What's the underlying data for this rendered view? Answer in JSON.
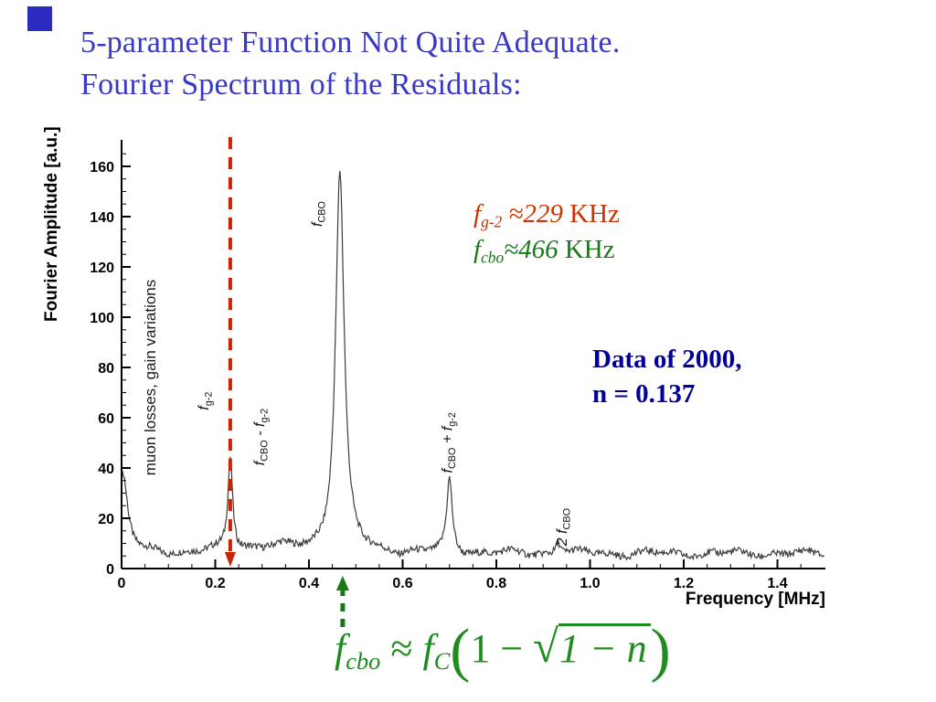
{
  "slide": {
    "title": {
      "line1": "5-parameter Function Not Quite Adequate.",
      "line2": "Fourier Spectrum of the Residuals:",
      "color": "#3939c8"
    },
    "corner_color": "#2b2bbf"
  },
  "annotations": {
    "fg2": {
      "color": "#cc3300",
      "parts": [
        {
          "t": "f",
          "style": "it"
        },
        {
          "t": "g-2",
          "style": "sub"
        },
        {
          "t": " ≈229",
          "style": "it"
        },
        {
          "t": " KHz",
          "style": "norm"
        }
      ]
    },
    "fcbo": {
      "color": "#177a17",
      "parts": [
        {
          "t": "f",
          "style": "it"
        },
        {
          "t": "cbo",
          "style": "sub"
        },
        {
          "t": "≈466",
          "style": "it"
        },
        {
          "t": " KHz",
          "style": "norm"
        }
      ]
    },
    "data_note": {
      "color": "#000099",
      "line1": "Data of 2000,",
      "line2": "n = 0.137"
    }
  },
  "formula": {
    "color": "#1e8c1e",
    "parts": [
      {
        "t": "f",
        "style": "it"
      },
      {
        "t": "cbo",
        "style": "sub"
      },
      {
        "t": " ≈ ",
        "style": "norm"
      },
      {
        "t": "f",
        "style": "it"
      },
      {
        "t": "C",
        "style": "sub"
      },
      {
        "t": "(",
        "style": "paren"
      },
      {
        "t": "1 − ",
        "style": "norm"
      },
      {
        "t": "√",
        "style": "rad"
      },
      {
        "t": "1 − n",
        "style": "radicand"
      },
      {
        "t": ")",
        "style": "paren"
      }
    ]
  },
  "chart_data": {
    "type": "line",
    "title": "",
    "xlabel": "Frequency [MHz]",
    "ylabel": "Fourier Amplitude [a.u.]",
    "xlim": [
      0,
      1.5
    ],
    "ylim": [
      0,
      170
    ],
    "x_ticks": [
      "0",
      "0.2",
      "0.4",
      "0.6",
      "0.8",
      "1.0",
      "1.2",
      "1.4"
    ],
    "x_tick_vals": [
      0,
      0.2,
      0.4,
      0.6,
      0.8,
      1.0,
      1.2,
      1.4
    ],
    "y_ticks": [
      0,
      20,
      40,
      60,
      80,
      100,
      120,
      140,
      160
    ],
    "grid": false,
    "curve_color": "#3c3c3c",
    "baseline": 6,
    "noise_amp": 1.4,
    "peaks": [
      {
        "x": 0.003,
        "amp": 31,
        "width": 0.012,
        "name": "low-frequency spike"
      },
      {
        "x": 0.232,
        "amp": 37,
        "width": 0.006,
        "name": "f_g-2 / f_CBO - f_g-2 peak (~229 KHz)"
      },
      {
        "x": 0.466,
        "amp": 152,
        "width": 0.011,
        "name": "f_CBO peak (~466 KHz)"
      },
      {
        "x": 0.7,
        "amp": 29,
        "width": 0.007,
        "name": "f_CBO + f_g-2 peak"
      },
      {
        "x": 0.932,
        "amp": 5,
        "width": 0.007,
        "name": "2 f_CBO peak"
      }
    ],
    "peak_labels": [
      {
        "x_mhz": 0.185,
        "y_amp": 63,
        "parts": [
          {
            "t": "f",
            "style": "it"
          },
          {
            "t": "g-2",
            "style": "sub"
          }
        ]
      },
      {
        "x_mhz": 0.304,
        "y_amp": 41,
        "parts": [
          {
            "t": "f",
            "style": "it"
          },
          {
            "t": "CBO",
            "style": "sub"
          },
          {
            "t": " - f",
            "style": "it"
          },
          {
            "t": "g-2",
            "style": "sub"
          }
        ]
      },
      {
        "x_mhz": 0.427,
        "y_amp": 136,
        "parts": [
          {
            "t": "f",
            "style": "it"
          },
          {
            "t": "CBO",
            "style": "sub"
          }
        ]
      },
      {
        "x_mhz": 0.705,
        "y_amp": 38,
        "parts": [
          {
            "t": "f",
            "style": "it"
          },
          {
            "t": "CBO",
            "style": "sub"
          },
          {
            "t": " + f",
            "style": "it"
          },
          {
            "t": "g-2",
            "style": "sub"
          }
        ]
      },
      {
        "x_mhz": 0.95,
        "y_amp": 9,
        "parts": [
          {
            "t": "2 f",
            "style": "it"
          },
          {
            "t": "CBO",
            "style": "sub"
          }
        ]
      }
    ],
    "inner_note": {
      "x_mhz": 0.072,
      "y_amp": 37,
      "text": "muon losses, gain variations"
    },
    "markers": {
      "red_line": {
        "x_mhz": 0.232,
        "color": "#cc2200"
      },
      "green_arrow": {
        "x_mhz": 0.472,
        "color": "#177a17"
      }
    }
  }
}
